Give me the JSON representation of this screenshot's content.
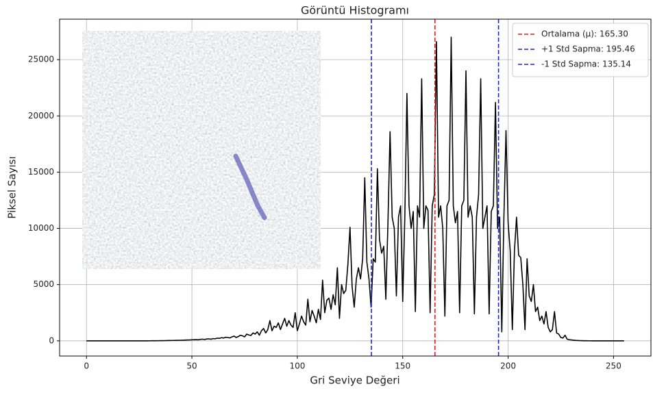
{
  "chart_data": {
    "type": "line",
    "title": "Görüntü Histogramı",
    "xlabel": "Gri Seviye Değeri",
    "ylabel": "Piksel Sayısı",
    "grid": true,
    "legend": "upper right",
    "xlim": [
      -12.75,
      267.75
    ],
    "ylim": [
      -1350,
      28600
    ],
    "xticks": [
      0,
      50,
      100,
      150,
      200,
      250
    ],
    "yticks": [
      0,
      5000,
      10000,
      15000,
      20000,
      25000
    ],
    "x": [
      0,
      1,
      2,
      3,
      4,
      5,
      6,
      7,
      8,
      9,
      10,
      11,
      12,
      13,
      14,
      15,
      16,
      17,
      18,
      19,
      20,
      21,
      22,
      23,
      24,
      25,
      26,
      27,
      28,
      29,
      30,
      31,
      32,
      33,
      34,
      35,
      36,
      37,
      38,
      39,
      40,
      41,
      42,
      43,
      44,
      45,
      46,
      47,
      48,
      49,
      50,
      51,
      52,
      53,
      54,
      55,
      56,
      57,
      58,
      59,
      60,
      61,
      62,
      63,
      64,
      65,
      66,
      67,
      68,
      69,
      70,
      71,
      72,
      73,
      74,
      75,
      76,
      77,
      78,
      79,
      80,
      81,
      82,
      83,
      84,
      85,
      86,
      87,
      88,
      89,
      90,
      91,
      92,
      93,
      94,
      95,
      96,
      97,
      98,
      99,
      100,
      101,
      102,
      103,
      104,
      105,
      106,
      107,
      108,
      109,
      110,
      111,
      112,
      113,
      114,
      115,
      116,
      117,
      118,
      119,
      120,
      121,
      122,
      123,
      124,
      125,
      126,
      127,
      128,
      129,
      130,
      131,
      132,
      133,
      134,
      135,
      136,
      137,
      138,
      139,
      140,
      141,
      142,
      143,
      144,
      145,
      146,
      147,
      148,
      149,
      150,
      151,
      152,
      153,
      154,
      155,
      156,
      157,
      158,
      159,
      160,
      161,
      162,
      163,
      164,
      165,
      166,
      167,
      168,
      169,
      170,
      171,
      172,
      173,
      174,
      175,
      176,
      177,
      178,
      179,
      180,
      181,
      182,
      183,
      184,
      185,
      186,
      187,
      188,
      189,
      190,
      191,
      192,
      193,
      194,
      195,
      196,
      197,
      198,
      199,
      200,
      201,
      202,
      203,
      204,
      205,
      206,
      207,
      208,
      209,
      210,
      211,
      212,
      213,
      214,
      215,
      216,
      217,
      218,
      219,
      220,
      221,
      222,
      223,
      224,
      225,
      226,
      227,
      228,
      229,
      230,
      231,
      232,
      233,
      234,
      235,
      236,
      237,
      238,
      239,
      240,
      241,
      242,
      243,
      244,
      245,
      246,
      247,
      248,
      249,
      250,
      251,
      252,
      253,
      254,
      255
    ],
    "series": [
      {
        "color": "#000000",
        "values": [
          0,
          0,
          0,
          0,
          0,
          0,
          0,
          0,
          0,
          0,
          0,
          0,
          0,
          0,
          0,
          0,
          0,
          0,
          0,
          0,
          0,
          0,
          0,
          0,
          0,
          0,
          0,
          0,
          0,
          0,
          5,
          6,
          8,
          10,
          12,
          15,
          18,
          20,
          25,
          30,
          30,
          35,
          40,
          45,
          50,
          55,
          60,
          70,
          75,
          80,
          90,
          100,
          110,
          90,
          130,
          150,
          120,
          160,
          180,
          140,
          200,
          180,
          240,
          220,
          280,
          250,
          320,
          300,
          260,
          350,
          420,
          300,
          380,
          500,
          450,
          350,
          600,
          520,
          480,
          700,
          600,
          800,
          500,
          900,
          1100,
          700,
          1000,
          1800,
          900,
          1300,
          1200,
          1600,
          1000,
          1500,
          2000,
          1300,
          1800,
          1400,
          1200,
          2500,
          900,
          1500,
          2200,
          1700,
          1400,
          3700,
          1700,
          2700,
          2200,
          1600,
          2800,
          1900,
          5400,
          2500,
          3600,
          3800,
          2800,
          4100,
          3200,
          6500,
          2000,
          5000,
          4200,
          4500,
          6800,
          10100,
          4800,
          3000,
          5500,
          6500,
          5500,
          7300,
          14500,
          7000,
          5500,
          3000,
          7300,
          7000,
          15300,
          9000,
          7800,
          8400,
          3700,
          10500,
          18600,
          11000,
          10000,
          4000,
          11000,
          12000,
          3500,
          11000,
          22000,
          12000,
          10000,
          11500,
          2600,
          12000,
          11000,
          23300,
          10000,
          12000,
          11600,
          2500,
          12000,
          13000,
          26600,
          11000,
          12000,
          10000,
          2200,
          12000,
          12500,
          27000,
          12000,
          10500,
          11500,
          2500,
          12000,
          12500,
          24000,
          11000,
          12000,
          11000,
          2400,
          11000,
          13000,
          23300,
          10000,
          11000,
          12000,
          2400,
          11500,
          12000,
          21200,
          10000,
          11000,
          800,
          11000,
          18700,
          10500,
          8000,
          1000,
          8000,
          11000,
          7600,
          7400,
          5000,
          1000,
          7300,
          4000,
          3500,
          5000,
          2600,
          3000,
          1800,
          2200,
          1500,
          2600,
          1200,
          800,
          1000,
          2600,
          700,
          600,
          300,
          250,
          500,
          150,
          100,
          80,
          60,
          40,
          30,
          20,
          15,
          10,
          8,
          5,
          4,
          3,
          2,
          2,
          1,
          1,
          0,
          0,
          0,
          0,
          0,
          0,
          0,
          0,
          0,
          0,
          0
        ]
      }
    ],
    "vlines": [
      {
        "value": 165.3,
        "label": "Ortalama (μ): 165.30",
        "color": "#e41a1c"
      },
      {
        "value": 195.46,
        "label": "+1 Std Sapma: 195.46",
        "color": "#1f1fe0"
      },
      {
        "value": 135.14,
        "label": "-1 Std Sapma: 135.14",
        "color": "#1f1fe0"
      }
    ]
  }
}
